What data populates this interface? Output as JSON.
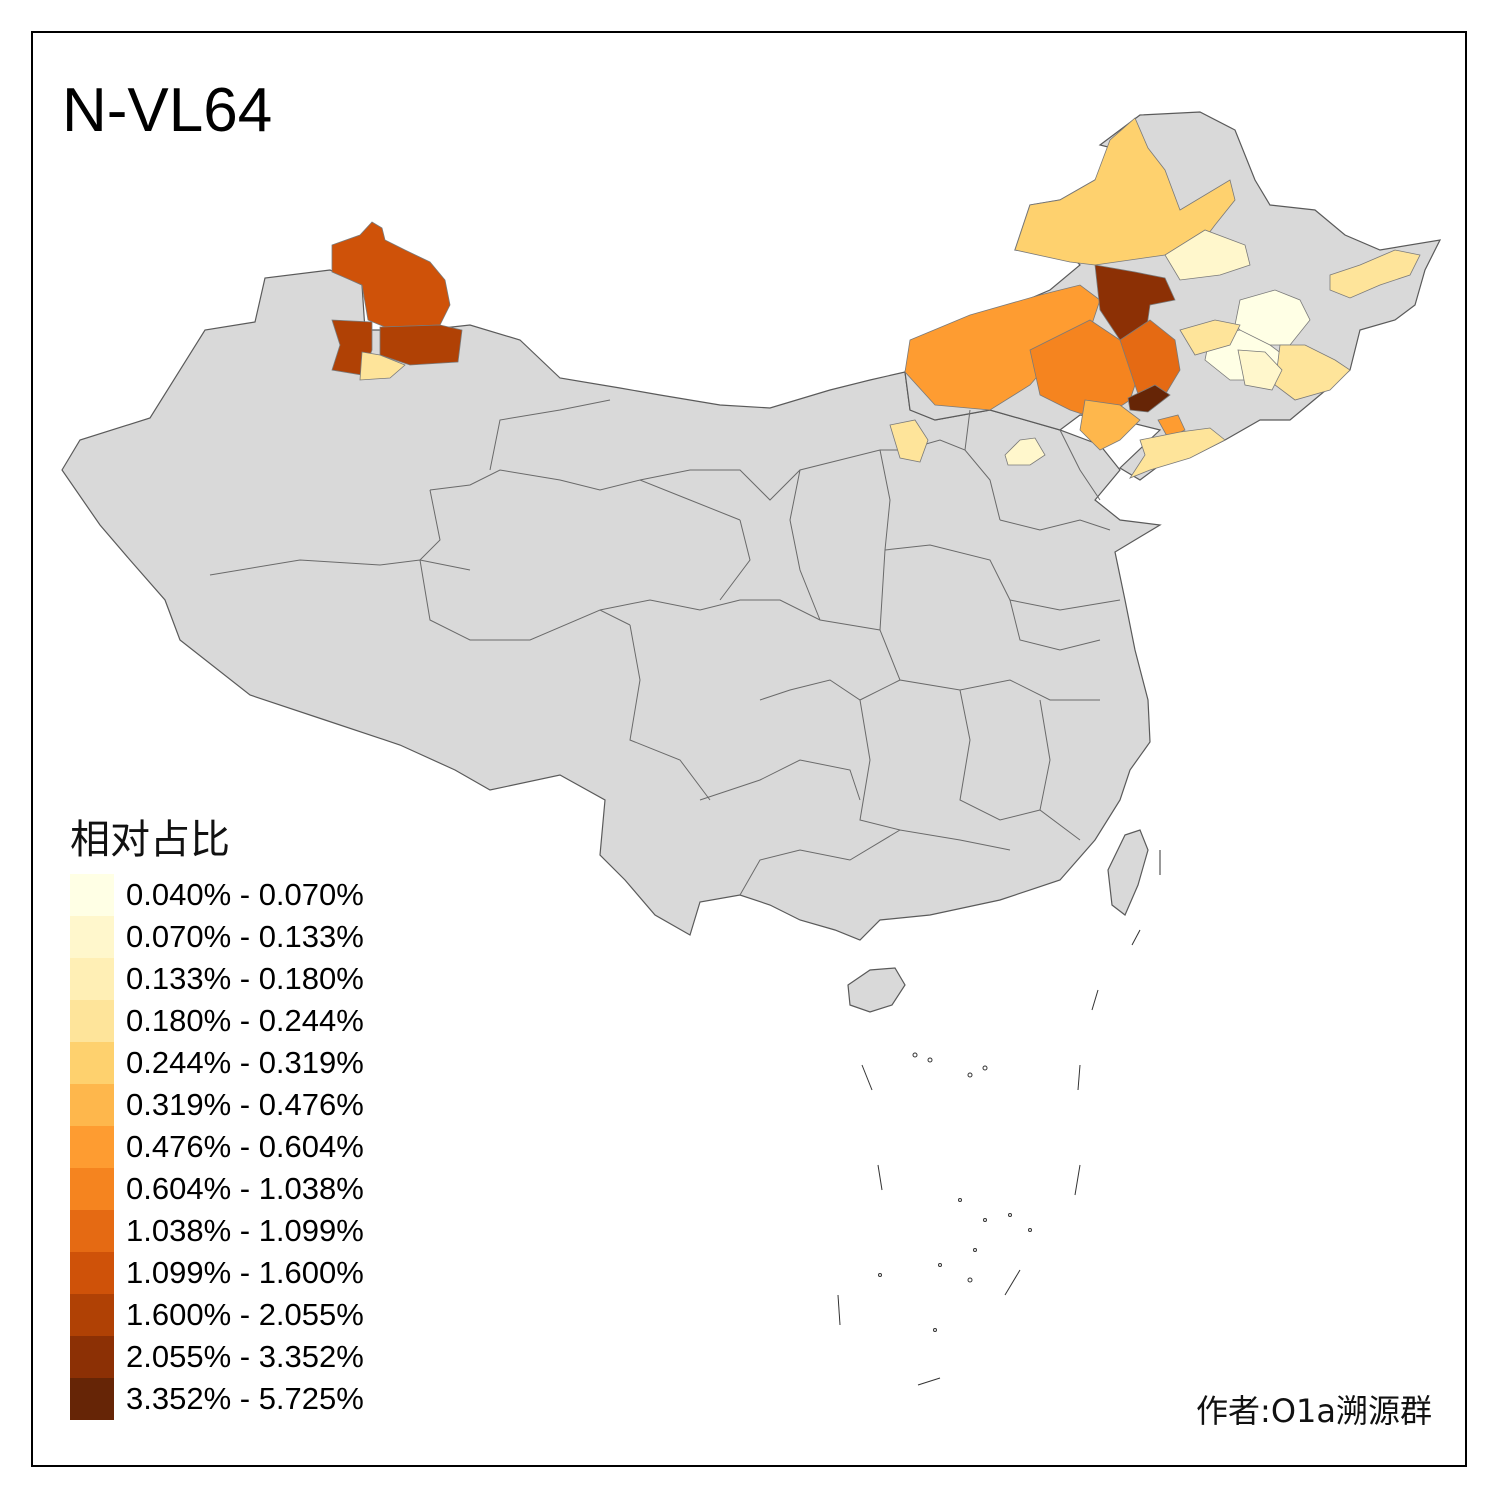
{
  "map": {
    "title": "N-VL64",
    "credit": "作者:O1a溯源群",
    "default_fill": "#d9d9d9",
    "border_color": "#5a5a5a"
  },
  "legend": {
    "title": "相对占比",
    "items": [
      {
        "label": "0.040% - 0.070%",
        "color": "#ffffe5"
      },
      {
        "label": "0.070% - 0.133%",
        "color": "#fff7cc"
      },
      {
        "label": "0.133% - 0.180%",
        "color": "#ffefb5"
      },
      {
        "label": "0.180% - 0.244%",
        "color": "#fee49a"
      },
      {
        "label": "0.244% - 0.319%",
        "color": "#fed16e"
      },
      {
        "label": "0.319% - 0.476%",
        "color": "#feb74c"
      },
      {
        "label": "0.476% - 0.604%",
        "color": "#fe9c31"
      },
      {
        "label": "0.604% - 1.038%",
        "color": "#f5841f"
      },
      {
        "label": "1.038% - 1.099%",
        "color": "#e56a13"
      },
      {
        "label": "1.099% - 1.600%",
        "color": "#cf5209"
      },
      {
        "label": "1.600% - 2.055%",
        "color": "#b04105"
      },
      {
        "label": "2.055% - 3.352%",
        "color": "#8c3005"
      },
      {
        "label": "3.352% - 5.725%",
        "color": "#662506"
      }
    ]
  }
}
